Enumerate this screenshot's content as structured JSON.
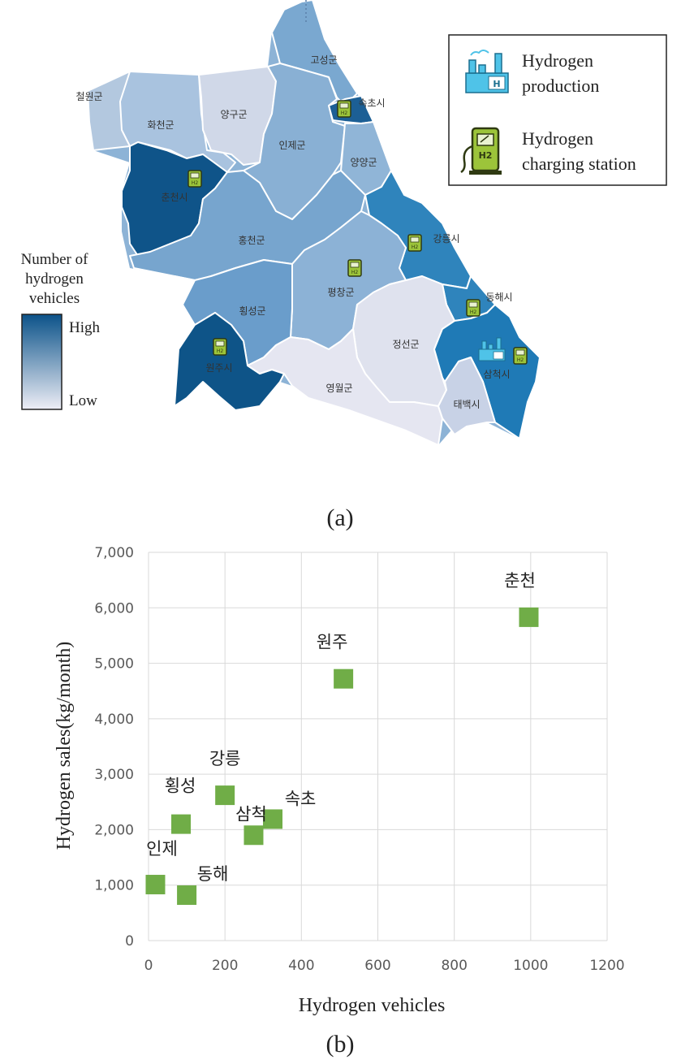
{
  "figure": {
    "panel_a_caption": "(a)",
    "panel_b_caption": "(b)"
  },
  "map": {
    "legend_box": {
      "production_label_1": "Hydrogen",
      "production_label_2": "production",
      "station_label_1": "Hydrogen",
      "station_label_2": "charging station",
      "station_icon_text": "H2"
    },
    "color_scale": {
      "title_1": "Number of",
      "title_2": "hydrogen",
      "title_3": "vehicles",
      "high_label": "High",
      "low_label": "Low",
      "high_color": "#0b5289",
      "low_color": "#eeeef6"
    },
    "regions": [
      {
        "key": "cheorwon",
        "name": "철원군",
        "color": "#b3c8df"
      },
      {
        "key": "hwacheon",
        "name": "화천군",
        "color": "#a9c3df"
      },
      {
        "key": "yanggu",
        "name": "양구군",
        "color": "#d0d8e8"
      },
      {
        "key": "goseong",
        "name": "고성군",
        "color": "#7aa8d0"
      },
      {
        "key": "sokcho",
        "name": "속초시",
        "color": "#1c5f95"
      },
      {
        "key": "inje",
        "name": "인제군",
        "color": "#89b0d4"
      },
      {
        "key": "yangyang",
        "name": "양양군",
        "color": "#90b5d7"
      },
      {
        "key": "chuncheon",
        "name": "춘천시",
        "color": "#0f5489"
      },
      {
        "key": "hongcheon",
        "name": "홍천군",
        "color": "#77a5ce"
      },
      {
        "key": "gangneung",
        "name": "강릉시",
        "color": "#2f84bc"
      },
      {
        "key": "pyeongchang",
        "name": "평창군",
        "color": "#8cb2d6"
      },
      {
        "key": "hoengseong",
        "name": "횡성군",
        "color": "#6a9dcb"
      },
      {
        "key": "donghae",
        "name": "동해시",
        "color": "#2f84bc"
      },
      {
        "key": "jeongseon",
        "name": "정선군",
        "color": "#dfe2ee"
      },
      {
        "key": "wonju",
        "name": "원주시",
        "color": "#0e5488"
      },
      {
        "key": "yeongwol",
        "name": "영월군",
        "color": "#e5e6f1"
      },
      {
        "key": "samcheok",
        "name": "삼척시",
        "color": "#1f7ab6"
      },
      {
        "key": "taebaek",
        "name": "태백시",
        "color": "#c8d2e6"
      }
    ]
  },
  "chart_data": {
    "type": "scatter",
    "title": "",
    "xlabel": "Hydrogen vehicles",
    "ylabel": "Hydrogen sales(kg/month)",
    "xlim": [
      0,
      1200
    ],
    "ylim": [
      0,
      7000
    ],
    "x_ticks": [
      "0",
      "200",
      "400",
      "600",
      "800",
      "1000",
      "1200"
    ],
    "y_ticks": [
      "0",
      "1,000",
      "2,000",
      "3,000",
      "4,000",
      "5,000",
      "6,000",
      "7,000"
    ],
    "grid": true,
    "marker_color": "#70ad47",
    "points": [
      {
        "label": "춘천",
        "x": 995,
        "y": 5830
      },
      {
        "label": "원주",
        "x": 510,
        "y": 4720
      },
      {
        "label": "강릉",
        "x": 200,
        "y": 2620
      },
      {
        "label": "속초",
        "x": 325,
        "y": 2190
      },
      {
        "label": "삼척",
        "x": 275,
        "y": 1900
      },
      {
        "label": "횡성",
        "x": 85,
        "y": 2100
      },
      {
        "label": "인제",
        "x": 18,
        "y": 1010
      },
      {
        "label": "동해",
        "x": 100,
        "y": 820
      }
    ]
  }
}
